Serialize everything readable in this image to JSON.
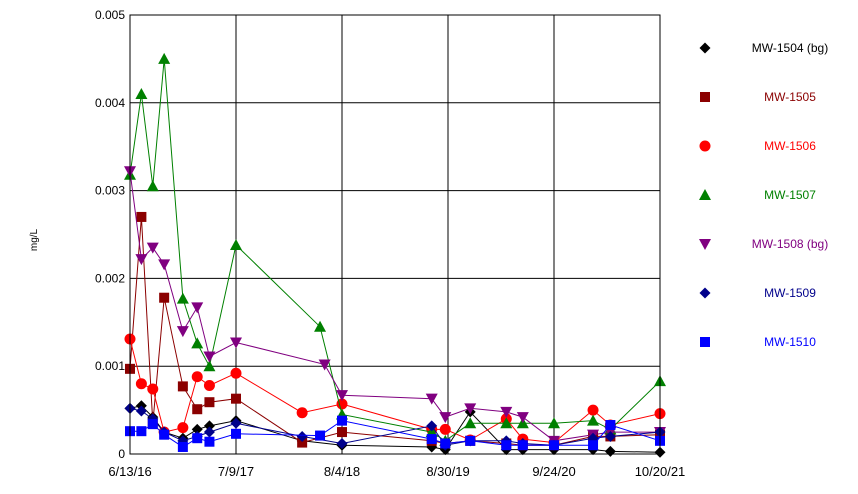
{
  "chart_data": {
    "type": "line",
    "title": "",
    "xlabel": "",
    "ylabel": "mg/L",
    "ylim": [
      0,
      0.005
    ],
    "xlim": [
      "2016-06-13",
      "2021-10-20"
    ],
    "y_ticks": [
      "0",
      "0.001",
      "0.002",
      "0.003",
      "0.004",
      "0.005"
    ],
    "x_ticks": [
      {
        "label": "6/13/16",
        "date": "2016-06-13"
      },
      {
        "label": "7/9/17",
        "date": "2017-07-09"
      },
      {
        "label": "8/4/18",
        "date": "2018-08-04"
      },
      {
        "label": "8/30/19",
        "date": "2019-08-30"
      },
      {
        "label": "9/24/20",
        "date": "2020-09-24"
      },
      {
        "label": "10/20/21",
        "date": "2021-10-20"
      }
    ],
    "grid": true,
    "legend_position": "right",
    "series": [
      {
        "name": "MW-1504 (bg)",
        "color": "#000000",
        "marker": "diamond",
        "points": [
          {
            "x": "2016-06-13",
            "y": 0.00052
          },
          {
            "x": "2016-07-25",
            "y": 0.00055
          },
          {
            "x": "2016-09-05",
            "y": 0.00042
          },
          {
            "x": "2016-10-17",
            "y": 0.00025
          },
          {
            "x": "2016-12-25",
            "y": 0.00018
          },
          {
            "x": "2017-02-16",
            "y": 0.00028
          },
          {
            "x": "2017-04-02",
            "y": 0.00032
          },
          {
            "x": "2017-07-09",
            "y": 0.00038
          },
          {
            "x": "2018-03-10",
            "y": 0.00015
          },
          {
            "x": "2018-08-04",
            "y": 0.0001
          },
          {
            "x": "2019-07-01",
            "y": 8e-05
          },
          {
            "x": "2019-08-20",
            "y": 5e-05
          },
          {
            "x": "2019-11-20",
            "y": 0.00048
          },
          {
            "x": "2020-04-01",
            "y": 5e-05
          },
          {
            "x": "2020-06-01",
            "y": 5e-05
          },
          {
            "x": "2020-09-24",
            "y": 5e-05
          },
          {
            "x": "2021-02-15",
            "y": 5e-05
          },
          {
            "x": "2021-04-20",
            "y": 3e-05
          },
          {
            "x": "2021-10-20",
            "y": 2e-05
          }
        ]
      },
      {
        "name": "MW-1505",
        "color": "#8b0000",
        "marker": "square",
        "points": [
          {
            "x": "2016-06-13",
            "y": 0.00097
          },
          {
            "x": "2016-07-25",
            "y": 0.0027
          },
          {
            "x": "2016-09-05",
            "y": 0.00035
          },
          {
            "x": "2016-10-17",
            "y": 0.00178
          },
          {
            "x": "2016-12-25",
            "y": 0.00077
          },
          {
            "x": "2017-02-16",
            "y": 0.00051
          },
          {
            "x": "2017-04-02",
            "y": 0.00059
          },
          {
            "x": "2017-07-09",
            "y": 0.00063
          },
          {
            "x": "2018-03-10",
            "y": 0.00013
          },
          {
            "x": "2018-08-04",
            "y": 0.00025
          },
          {
            "x": "2019-07-01",
            "y": 0.00015
          },
          {
            "x": "2019-08-20",
            "y": 0.00012
          },
          {
            "x": "2019-11-20",
            "y": 0.00015
          },
          {
            "x": "2020-04-01",
            "y": 0.00012
          },
          {
            "x": "2020-06-01",
            "y": 0.0001
          },
          {
            "x": "2020-09-24",
            "y": 0.0001
          },
          {
            "x": "2021-02-15",
            "y": 0.0002
          },
          {
            "x": "2021-04-20",
            "y": 0.0002
          },
          {
            "x": "2021-10-20",
            "y": 0.00022
          }
        ]
      },
      {
        "name": "MW-1506",
        "color": "#ff0000",
        "marker": "circle",
        "points": [
          {
            "x": "2016-06-13",
            "y": 0.00131
          },
          {
            "x": "2016-07-25",
            "y": 0.0008
          },
          {
            "x": "2016-09-05",
            "y": 0.00074
          },
          {
            "x": "2016-10-17",
            "y": 0.00025
          },
          {
            "x": "2016-12-25",
            "y": 0.0003
          },
          {
            "x": "2017-02-16",
            "y": 0.00088
          },
          {
            "x": "2017-04-02",
            "y": 0.00078
          },
          {
            "x": "2017-07-09",
            "y": 0.00092
          },
          {
            "x": "2018-03-10",
            "y": 0.00047
          },
          {
            "x": "2018-08-04",
            "y": 0.00057
          },
          {
            "x": "2019-07-01",
            "y": 0.00028
          },
          {
            "x": "2019-08-20",
            "y": 0.00028
          },
          {
            "x": "2019-11-20",
            "y": 0.00016
          },
          {
            "x": "2020-04-01",
            "y": 0.0004
          },
          {
            "x": "2020-06-01",
            "y": 0.00017
          },
          {
            "x": "2020-09-24",
            "y": 0.00013
          },
          {
            "x": "2021-02-15",
            "y": 0.0005
          },
          {
            "x": "2021-04-20",
            "y": 0.00033
          },
          {
            "x": "2021-10-20",
            "y": 0.00046
          }
        ]
      },
      {
        "name": "MW-1507",
        "color": "#008000",
        "marker": "triangle-up",
        "points": [
          {
            "x": "2016-06-13",
            "y": 0.00318
          },
          {
            "x": "2016-07-25",
            "y": 0.0041
          },
          {
            "x": "2016-09-05",
            "y": 0.00305
          },
          {
            "x": "2016-10-17",
            "y": 0.0045
          },
          {
            "x": "2016-12-25",
            "y": 0.00177
          },
          {
            "x": "2017-02-16",
            "y": 0.00126
          },
          {
            "x": "2017-04-02",
            "y": 0.001
          },
          {
            "x": "2017-07-09",
            "y": 0.00238
          },
          {
            "x": "2018-05-15",
            "y": 0.00145
          },
          {
            "x": "2018-08-04",
            "y": 0.00045
          },
          {
            "x": "2019-07-01",
            "y": 0.00025
          },
          {
            "x": "2019-08-20",
            "y": 0.00015
          },
          {
            "x": "2019-11-20",
            "y": 0.00035
          },
          {
            "x": "2020-04-01",
            "y": 0.00035
          },
          {
            "x": "2020-06-01",
            "y": 0.00035
          },
          {
            "x": "2020-09-24",
            "y": 0.00035
          },
          {
            "x": "2021-02-15",
            "y": 0.00038
          },
          {
            "x": "2021-04-20",
            "y": 0.00028
          },
          {
            "x": "2021-10-20",
            "y": 0.00083
          }
        ]
      },
      {
        "name": "MW-1508 (bg)",
        "color": "#800080",
        "marker": "triangle-down",
        "points": [
          {
            "x": "2016-06-13",
            "y": 0.00322
          },
          {
            "x": "2016-07-25",
            "y": 0.00222
          },
          {
            "x": "2016-09-05",
            "y": 0.00235
          },
          {
            "x": "2016-10-17",
            "y": 0.00216
          },
          {
            "x": "2016-12-25",
            "y": 0.0014
          },
          {
            "x": "2017-02-16",
            "y": 0.00167
          },
          {
            "x": "2017-04-02",
            "y": 0.00111
          },
          {
            "x": "2017-07-09",
            "y": 0.00127
          },
          {
            "x": "2018-06-01",
            "y": 0.00102
          },
          {
            "x": "2018-08-04",
            "y": 0.00067
          },
          {
            "x": "2019-07-01",
            "y": 0.00063
          },
          {
            "x": "2019-08-20",
            "y": 0.00042
          },
          {
            "x": "2019-11-20",
            "y": 0.00052
          },
          {
            "x": "2020-04-01",
            "y": 0.00048
          },
          {
            "x": "2020-06-01",
            "y": 0.00042
          },
          {
            "x": "2020-09-24",
            "y": 0.00015
          },
          {
            "x": "2021-02-15",
            "y": 0.00022
          },
          {
            "x": "2021-04-20",
            "y": 0.00025
          },
          {
            "x": "2021-10-20",
            "y": 0.00025
          }
        ]
      },
      {
        "name": "MW-1509",
        "color": "#00008b",
        "marker": "diamond",
        "points": [
          {
            "x": "2016-06-13",
            "y": 0.00052
          },
          {
            "x": "2016-07-25",
            "y": 0.00049
          },
          {
            "x": "2016-09-05",
            "y": 0.0004
          },
          {
            "x": "2016-10-17",
            "y": 0.00025
          },
          {
            "x": "2016-12-25",
            "y": 0.00015
          },
          {
            "x": "2017-02-16",
            "y": 0.0002
          },
          {
            "x": "2017-04-02",
            "y": 0.00025
          },
          {
            "x": "2017-07-09",
            "y": 0.00035
          },
          {
            "x": "2018-03-10",
            "y": 0.0002
          },
          {
            "x": "2018-08-04",
            "y": 0.00012
          },
          {
            "x": "2019-07-01",
            "y": 0.00032
          },
          {
            "x": "2019-08-20",
            "y": 0.0001
          },
          {
            "x": "2019-11-20",
            "y": 0.00015
          },
          {
            "x": "2020-04-01",
            "y": 0.00015
          },
          {
            "x": "2020-06-01",
            "y": 0.00012
          },
          {
            "x": "2020-09-24",
            "y": 0.0001
          },
          {
            "x": "2021-02-15",
            "y": 0.00018
          },
          {
            "x": "2021-04-20",
            "y": 0.0002
          },
          {
            "x": "2021-10-20",
            "y": 0.00025
          }
        ]
      },
      {
        "name": "MW-1510",
        "color": "#0000ff",
        "marker": "square",
        "points": [
          {
            "x": "2016-06-13",
            "y": 0.00026
          },
          {
            "x": "2016-07-25",
            "y": 0.00026
          },
          {
            "x": "2016-09-05",
            "y": 0.00034
          },
          {
            "x": "2016-10-17",
            "y": 0.00022
          },
          {
            "x": "2016-12-25",
            "y": 8e-05
          },
          {
            "x": "2017-02-16",
            "y": 0.00018
          },
          {
            "x": "2017-04-02",
            "y": 0.00014
          },
          {
            "x": "2017-07-09",
            "y": 0.00023
          },
          {
            "x": "2018-05-15",
            "y": 0.00021
          },
          {
            "x": "2018-08-04",
            "y": 0.00038
          },
          {
            "x": "2019-07-01",
            "y": 0.00017
          },
          {
            "x": "2019-08-20",
            "y": 0.00012
          },
          {
            "x": "2019-11-20",
            "y": 0.00015
          },
          {
            "x": "2020-04-01",
            "y": 0.0001
          },
          {
            "x": "2020-06-01",
            "y": 0.0001
          },
          {
            "x": "2020-09-24",
            "y": 0.0001
          },
          {
            "x": "2021-02-15",
            "y": 0.0001
          },
          {
            "x": "2021-04-20",
            "y": 0.00033
          },
          {
            "x": "2021-10-20",
            "y": 0.00015
          }
        ]
      }
    ]
  }
}
